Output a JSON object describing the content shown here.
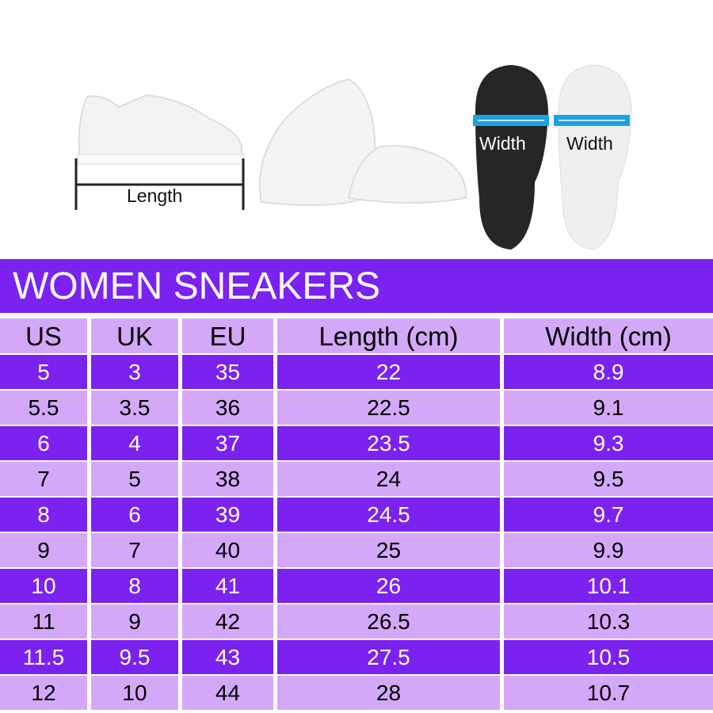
{
  "images": {
    "length_label": "Length",
    "width_label_left": "Width",
    "width_label_right": "Width"
  },
  "colors": {
    "primary": "#7b22f0",
    "light": "#d4a8f9",
    "arrow": "#1aa3e0"
  },
  "title": "WOMEN SNEAKERS",
  "table": {
    "headers": [
      "US",
      "UK",
      "EU",
      "Length (cm)",
      "Width (cm)"
    ],
    "rows": [
      [
        "5",
        "3",
        "35",
        "22",
        "8.9"
      ],
      [
        "5.5",
        "3.5",
        "36",
        "22.5",
        "9.1"
      ],
      [
        "6",
        "4",
        "37",
        "23.5",
        "9.3"
      ],
      [
        "7",
        "5",
        "38",
        "24",
        "9.5"
      ],
      [
        "8",
        "6",
        "39",
        "24.5",
        "9.7"
      ],
      [
        "9",
        "7",
        "40",
        "25",
        "9.9"
      ],
      [
        "10",
        "8",
        "41",
        "26",
        "10.1"
      ],
      [
        "11",
        "9",
        "42",
        "26.5",
        "10.3"
      ],
      [
        "11.5",
        "9.5",
        "43",
        "27.5",
        "10.5"
      ],
      [
        "12",
        "10",
        "44",
        "28",
        "10.7"
      ]
    ]
  }
}
